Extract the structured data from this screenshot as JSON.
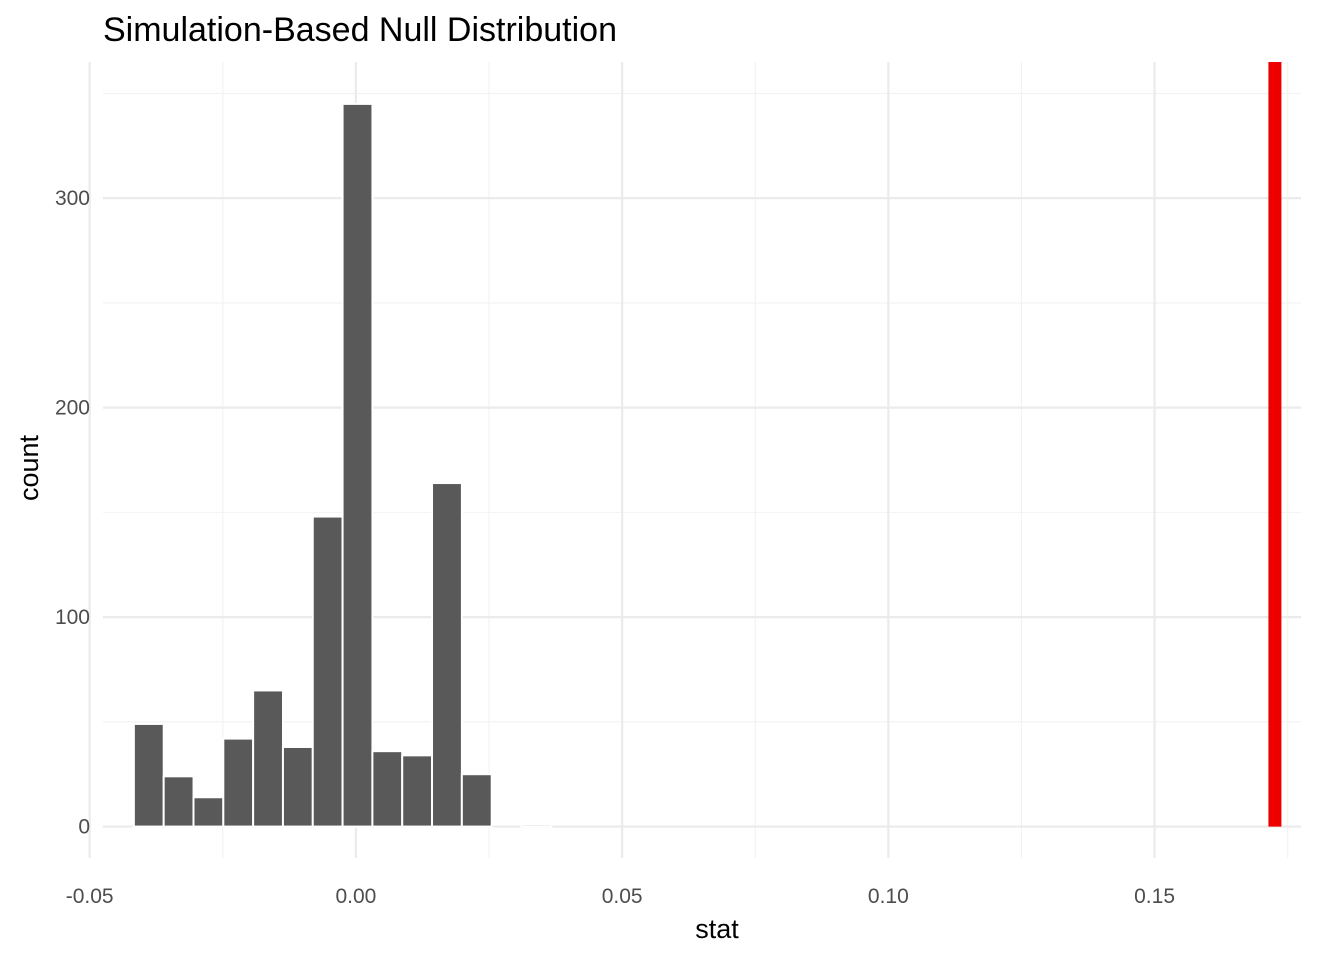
{
  "chart_data": {
    "type": "bar",
    "title": "Simulation-Based Null Distribution",
    "xlabel": "stat",
    "ylabel": "count",
    "xlim": [
      -0.0475,
      0.1775
    ],
    "ylim": [
      -15,
      365
    ],
    "x_ticks": [
      {
        "value": -0.05,
        "label": "-0.05"
      },
      {
        "value": 0.0,
        "label": "0.00"
      },
      {
        "value": 0.05,
        "label": "0.05"
      },
      {
        "value": 0.1,
        "label": "0.10"
      },
      {
        "value": 0.15,
        "label": "0.15"
      }
    ],
    "y_ticks": [
      {
        "value": 0,
        "label": "0"
      },
      {
        "value": 100,
        "label": "100"
      },
      {
        "value": 200,
        "label": "200"
      },
      {
        "value": 300,
        "label": "300"
      }
    ],
    "x_minor_ticks": [
      -0.025,
      0.025,
      0.075,
      0.125,
      0.175
    ],
    "y_minor_ticks": [
      50,
      150,
      250,
      350
    ],
    "bin_width": 0.005609,
    "bins": [
      {
        "center": -0.0389,
        "count": 49
      },
      {
        "center": -0.0333,
        "count": 24
      },
      {
        "center": -0.0277,
        "count": 14
      },
      {
        "center": -0.0221,
        "count": 42
      },
      {
        "center": -0.0165,
        "count": 65
      },
      {
        "center": -0.0109,
        "count": 38
      },
      {
        "center": -0.0053,
        "count": 148
      },
      {
        "center": 0.0003,
        "count": 345
      },
      {
        "center": 0.0059,
        "count": 36
      },
      {
        "center": 0.0115,
        "count": 34
      },
      {
        "center": 0.0171,
        "count": 164
      },
      {
        "center": 0.0227,
        "count": 25
      },
      {
        "center": 0.0283,
        "count": 0
      },
      {
        "center": 0.0339,
        "count": 1
      },
      {
        "center": 0.0395,
        "count": 0
      }
    ],
    "observed_stat": 0.1726,
    "observed_line_color": "#ee0000",
    "bar_color": "#595959",
    "grid": true,
    "legend": "none"
  }
}
